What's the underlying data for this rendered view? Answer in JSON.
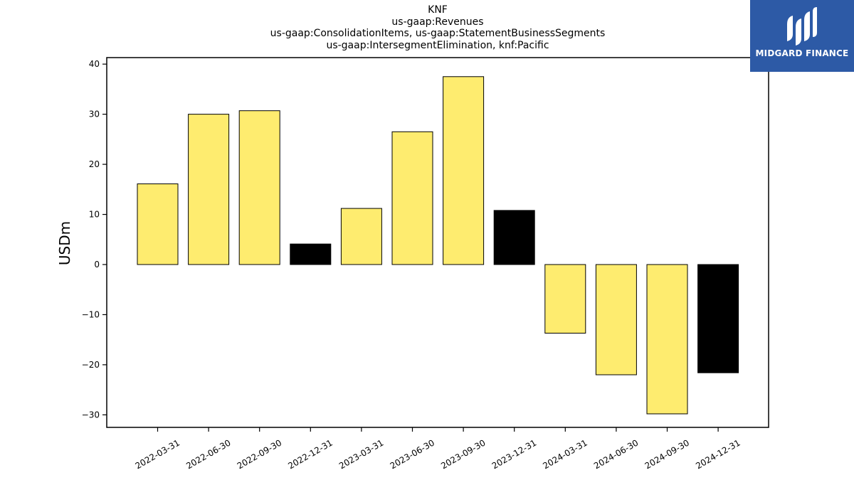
{
  "chart_data": {
    "type": "bar",
    "title": [
      "KNF",
      "us-gaap:Revenues",
      "us-gaap:ConsolidationItems, us-gaap:StatementBusinessSegments",
      "us-gaap:IntersegmentElimination, knf:Pacific"
    ],
    "xlabel": "",
    "ylabel": "USDm",
    "ylim": [
      -32.5,
      41.3
    ],
    "yticks": [
      -30,
      -20,
      -10,
      0,
      10,
      20,
      30,
      40
    ],
    "ytick_labels": [
      "−30",
      "−20",
      "−10",
      "0",
      "10",
      "20",
      "30",
      "40"
    ],
    "categories": [
      "2022-03-31",
      "2022-06-30",
      "2022-09-30",
      "2022-12-31",
      "2023-03-31",
      "2023-06-30",
      "2023-09-30",
      "2023-12-31",
      "2024-03-31",
      "2024-06-30",
      "2024-09-30",
      "2024-12-31"
    ],
    "values": [
      16.1,
      30.0,
      30.7,
      4.1,
      11.2,
      26.5,
      37.5,
      10.8,
      -13.7,
      -22.0,
      -29.8,
      -21.6
    ],
    "bar_colors": [
      "#feec6f",
      "#feec6f",
      "#feec6f",
      "#000000",
      "#feec6f",
      "#feec6f",
      "#feec6f",
      "#000000",
      "#feec6f",
      "#feec6f",
      "#feec6f",
      "#000000"
    ],
    "grid": false,
    "legend": "none"
  },
  "logo": {
    "text": "MIDGARD FINANCE",
    "background": "#2d5aa6"
  }
}
